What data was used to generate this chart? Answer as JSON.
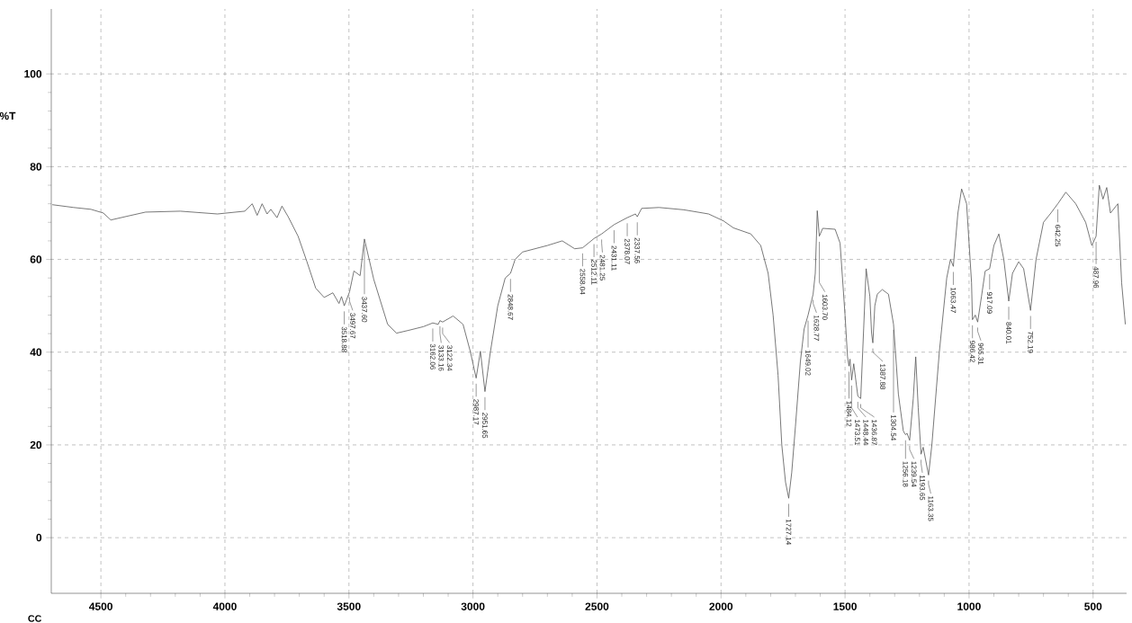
{
  "chart_data": {
    "type": "line",
    "ylabel": "%T",
    "xlim": [
      4700,
      365
    ],
    "ylim": [
      -12,
      114
    ],
    "xticks": [
      4500,
      4000,
      3500,
      3000,
      2500,
      2000,
      1500,
      1000,
      500
    ],
    "yticks": [
      0,
      20,
      40,
      60,
      80,
      100
    ],
    "grid": true,
    "x": [
      4696,
      4610,
      4540,
      4490,
      4460,
      4395,
      4320,
      4180,
      4030,
      3920,
      3890,
      3870,
      3850,
      3830,
      3815,
      3790,
      3770,
      3745,
      3705,
      3670,
      3634,
      3600,
      3565,
      3540,
      3530,
      3518.88,
      3497.67,
      3480,
      3455,
      3437.6,
      3400,
      3344,
      3308,
      3260,
      3200,
      3162.06,
      3140,
      3133.16,
      3122.34,
      3080,
      3040,
      3010,
      2987.17,
      2970,
      2951.65,
      2930,
      2900,
      2870,
      2848.67,
      2830,
      2800,
      2700,
      2640,
      2590,
      2558.04,
      2512.11,
      2481.25,
      2431.11,
      2378.07,
      2345,
      2337.56,
      2320,
      2250,
      2150,
      2050,
      1990,
      1950,
      1880,
      1840,
      1810,
      1790,
      1770,
      1755,
      1740,
      1727.14,
      1715,
      1700,
      1680,
      1665,
      1649.02,
      1628.77,
      1620,
      1612,
      1603.7,
      1590,
      1540,
      1520,
      1500,
      1490,
      1484.12,
      1480,
      1473.51,
      1465,
      1448.44,
      1436.87,
      1425,
      1415,
      1400,
      1393,
      1387.88,
      1380,
      1370,
      1350,
      1325,
      1304.54,
      1285,
      1265,
      1256.18,
      1250,
      1239.54,
      1225,
      1215,
      1205,
      1193.65,
      1185,
      1163.35,
      1150,
      1120,
      1090,
      1075,
      1063.47,
      1045,
      1030,
      1010,
      990,
      986.42,
      975,
      965.31,
      950,
      935,
      917.09,
      900,
      880,
      860,
      840.01,
      825,
      800,
      780,
      752.19,
      730,
      700,
      670,
      642.25,
      610,
      570,
      530,
      505,
      487.96,
      475,
      460,
      445,
      430,
      400,
      385,
      370
    ],
    "series": [
      {
        "color": "#555555",
        "values": [
          71.8,
          71.2,
          70.8,
          70.0,
          68.5,
          69.3,
          70.2,
          70.4,
          69.8,
          70.4,
          72.0,
          69.5,
          72.0,
          69.8,
          70.8,
          69.0,
          71.5,
          69.2,
          65.0,
          59.6,
          53.8,
          51.8,
          52.8,
          50.5,
          52.0,
          50.0,
          53.0,
          57.5,
          56.5,
          64.4,
          55.7,
          46.0,
          44.1,
          44.7,
          45.5,
          46.3,
          46.0,
          46.8,
          46.5,
          47.8,
          46.0,
          40.0,
          34.4,
          40.2,
          31.5,
          40.0,
          50.0,
          56.0,
          57.0,
          60.0,
          61.6,
          63.0,
          64.0,
          62.3,
          62.5,
          64.5,
          65.5,
          67.5,
          69.0,
          69.8,
          69.2,
          71.0,
          71.2,
          70.7,
          69.8,
          68.3,
          66.8,
          65.5,
          63.0,
          57.0,
          48.0,
          35.0,
          20.0,
          12.0,
          8.5,
          14.0,
          24.0,
          38.0,
          45.0,
          48.0,
          52.5,
          57.0,
          70.5,
          65.0,
          66.7,
          66.5,
          63.5,
          48.0,
          39.0,
          37.0,
          38.5,
          34.0,
          37.5,
          30.5,
          30.0,
          45.0,
          58.0,
          52.0,
          44.0,
          42.0,
          50.0,
          52.5,
          53.5,
          52.5,
          46.0,
          31.0,
          23.0,
          22.2,
          22.5,
          21.0,
          30.0,
          39.0,
          28.0,
          18.0,
          19.5,
          13.5,
          20.0,
          40.0,
          56.0,
          60.0,
          58.5,
          70.0,
          75.2,
          72.0,
          55.0,
          47.0,
          48.0,
          46.5,
          52.0,
          57.5,
          58.0,
          63.0,
          65.5,
          60.0,
          51.0,
          57.0,
          59.5,
          58.0,
          49.0,
          60.0,
          68.0,
          70.0,
          72.0,
          74.5,
          72.0,
          68.0,
          63.0,
          65.0,
          76.0,
          73.0,
          75.5,
          70.0,
          72.0,
          55.0,
          46.0
        ]
      }
    ],
    "annotations": [
      "CC",
      {
        "text": "3518.88",
        "x": 3518.88,
        "y": 50.0
      },
      {
        "text": "3497.67",
        "x": 3497.67,
        "y": 53.0
      },
      {
        "text": "3437.60",
        "x": 3437.6,
        "y": 64.4
      },
      {
        "text": "3162.06",
        "x": 3162.06,
        "y": 46.3
      },
      {
        "text": "3133.16",
        "x": 3133.16,
        "y": 46.8
      },
      {
        "text": "3122.34",
        "x": 3122.34,
        "y": 46.5
      },
      {
        "text": "2987.17",
        "x": 2987.17,
        "y": 34.4
      },
      {
        "text": "2951.65",
        "x": 2951.65,
        "y": 31.5
      },
      {
        "text": "2848.67",
        "x": 2848.67,
        "y": 57.0
      },
      {
        "text": "2558.04",
        "x": 2558.04,
        "y": 62.5
      },
      {
        "text": "2512.11",
        "x": 2512.11,
        "y": 64.5
      },
      {
        "text": "2481.25",
        "x": 2481.25,
        "y": 65.5
      },
      {
        "text": "2431.11",
        "x": 2431.11,
        "y": 67.5
      },
      {
        "text": "2378.07",
        "x": 2378.07,
        "y": 69.0
      },
      {
        "text": "2337.56",
        "x": 2337.56,
        "y": 69.2
      },
      {
        "text": "1727.14",
        "x": 1727.14,
        "y": 8.5
      },
      {
        "text": "1649.02",
        "x": 1649.02,
        "y": 48.0
      },
      {
        "text": "1628.77",
        "x": 1628.77,
        "y": 52.5
      },
      {
        "text": "1603.70",
        "x": 1603.7,
        "y": 65.0
      },
      {
        "text": "1484.12",
        "x": 1484.12,
        "y": 37.0
      },
      {
        "text": "1473.51",
        "x": 1473.51,
        "y": 34.0
      },
      {
        "text": "1448.44",
        "x": 1448.44,
        "y": 30.5
      },
      {
        "text": "1436.87",
        "x": 1436.87,
        "y": 30.0
      },
      {
        "text": "1387.88",
        "x": 1387.88,
        "y": 42.0
      },
      {
        "text": "1304.54",
        "x": 1304.54,
        "y": 46.0
      },
      {
        "text": "1256.18",
        "x": 1256.18,
        "y": 22.2
      },
      {
        "text": "1239.54",
        "x": 1239.54,
        "y": 21.0
      },
      {
        "text": "1193.65",
        "x": 1193.65,
        "y": 18.0
      },
      {
        "text": "1163.35",
        "x": 1163.35,
        "y": 13.5
      },
      {
        "text": "1063.47",
        "x": 1063.47,
        "y": 58.5
      },
      {
        "text": "986.42",
        "x": 986.42,
        "y": 47.0
      },
      {
        "text": "965.31",
        "x": 965.31,
        "y": 46.5
      },
      {
        "text": "917.09",
        "x": 917.09,
        "y": 58.0
      },
      {
        "text": "840.01",
        "x": 840.01,
        "y": 51.0
      },
      {
        "text": "752.19",
        "x": 752.19,
        "y": 49.0
      },
      {
        "text": "642.25",
        "x": 642.25,
        "y": 72.0
      },
      {
        "text": "487.96",
        "x": 487.96,
        "y": 65.0
      }
    ]
  }
}
